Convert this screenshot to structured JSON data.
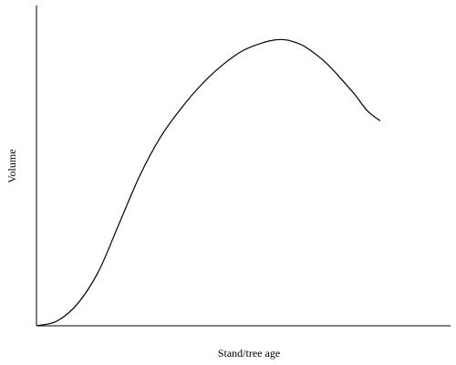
{
  "chart_data": {
    "type": "line",
    "title": "",
    "xlabel": "Stand/tree age",
    "ylabel": "Volume",
    "xlim": [
      0,
      100
    ],
    "ylim": [
      0,
      100
    ],
    "grid": false,
    "legend": "none",
    "ticks": "none",
    "series": [
      {
        "color": "#000000",
        "x": [
          0,
          5,
          10,
          15,
          20,
          25,
          30,
          35,
          40,
          45,
          50,
          55,
          58,
          60,
          62,
          65,
          70,
          75,
          77,
          80,
          83
        ],
        "y": [
          0,
          1.5,
          7,
          17,
          32,
          47,
          59,
          68,
          75.5,
          81.5,
          86,
          88.5,
          89.3,
          89.3,
          88.7,
          87,
          82,
          75,
          72,
          67,
          64
        ]
      }
    ]
  }
}
